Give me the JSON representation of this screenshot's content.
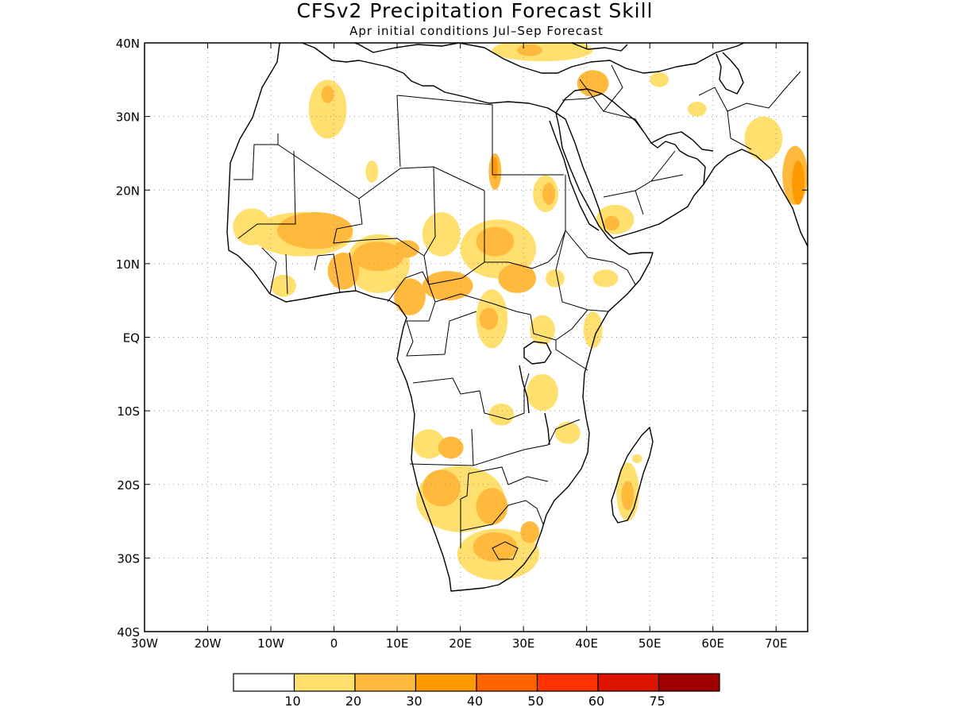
{
  "title": "CFSv2 Precipitation Forecast Skill",
  "subtitle": "Apr initial conditions  Jul–Sep Forecast",
  "map": {
    "lon_range": [
      -30,
      75
    ],
    "lat_range": [
      -40,
      40
    ],
    "grid": true,
    "lon_ticks": [
      {
        "value": -30,
        "label": "30W"
      },
      {
        "value": -20,
        "label": "20W"
      },
      {
        "value": -10,
        "label": "10W"
      },
      {
        "value": 0,
        "label": "0"
      },
      {
        "value": 10,
        "label": "10E"
      },
      {
        "value": 20,
        "label": "20E"
      },
      {
        "value": 30,
        "label": "30E"
      },
      {
        "value": 40,
        "label": "40E"
      },
      {
        "value": 50,
        "label": "50E"
      },
      {
        "value": 60,
        "label": "60E"
      },
      {
        "value": 70,
        "label": "70E"
      }
    ],
    "lat_ticks": [
      {
        "value": 40,
        "label": "40N"
      },
      {
        "value": 30,
        "label": "30N"
      },
      {
        "value": 20,
        "label": "20N"
      },
      {
        "value": 10,
        "label": "10N"
      },
      {
        "value": 0,
        "label": "EQ"
      },
      {
        "value": -10,
        "label": "10S"
      },
      {
        "value": -20,
        "label": "20S"
      },
      {
        "value": -30,
        "label": "30S"
      },
      {
        "value": -40,
        "label": "40S"
      }
    ]
  },
  "colorbar": {
    "colors": [
      "#ffffff",
      "#ffe06e",
      "#ffb93c",
      "#ff9a00",
      "#ff6400",
      "#ff3200",
      "#dc1400",
      "#a00000"
    ],
    "labels": [
      "10",
      "20",
      "30",
      "40",
      "50",
      "60",
      "75"
    ]
  },
  "chart_data": {
    "type": "heatmap",
    "variable": "precipitation forecast skill",
    "levels": [
      10,
      20,
      30,
      40,
      50,
      60,
      75
    ],
    "regions": [
      {
        "name": "morocco-algeria",
        "lon": -1,
        "lat": 31,
        "rlon": 3,
        "rlat": 4,
        "level": 10
      },
      {
        "name": "morocco-algeria-core",
        "lon": -1,
        "lat": 33,
        "rlon": 1,
        "rlat": 1.2,
        "level": 20
      },
      {
        "name": "algeria-south",
        "lon": 6,
        "lat": 22.5,
        "rlon": 1,
        "rlat": 1.5,
        "level": 10
      },
      {
        "name": "mediterranean-north",
        "lon": 33,
        "lat": 39,
        "rlon": 8,
        "rlat": 1.5,
        "level": 10
      },
      {
        "name": "mediterranean-core",
        "lon": 31,
        "lat": 39,
        "rlon": 2,
        "rlat": 0.8,
        "level": 20
      },
      {
        "name": "egypt-west",
        "lon": 25.5,
        "lat": 22.5,
        "rlon": 1,
        "rlat": 2.5,
        "level": 20
      },
      {
        "name": "egypt-west-core",
        "lon": 25.5,
        "lat": 23,
        "rlon": 0.4,
        "rlat": 1.5,
        "level": 30
      },
      {
        "name": "sudan-north",
        "lon": 33.5,
        "lat": 19.5,
        "rlon": 2,
        "rlat": 2.5,
        "level": 10
      },
      {
        "name": "sudan-north-core",
        "lon": 34,
        "lat": 19.5,
        "rlon": 1,
        "rlat": 1.5,
        "level": 20
      },
      {
        "name": "levant",
        "lon": 41,
        "lat": 34.5,
        "rlon": 2.5,
        "rlat": 1.8,
        "level": 20
      },
      {
        "name": "iran-west",
        "lon": 51.5,
        "lat": 35,
        "rlon": 1.5,
        "rlat": 1,
        "level": 10
      },
      {
        "name": "iran-south",
        "lon": 57.5,
        "lat": 31,
        "rlon": 1.5,
        "rlat": 1,
        "level": 10
      },
      {
        "name": "pakistan-india",
        "lon": 68,
        "lat": 27,
        "rlon": 3,
        "rlat": 3,
        "level": 10
      },
      {
        "name": "india-west-coast",
        "lon": 73,
        "lat": 22,
        "rlon": 2,
        "rlat": 4,
        "level": 20
      },
      {
        "name": "india-west-core",
        "lon": 73.5,
        "lat": 21,
        "rlon": 1,
        "rlat": 3,
        "level": 30
      },
      {
        "name": "yemen",
        "lon": 44.5,
        "lat": 16,
        "rlon": 3,
        "rlat": 2,
        "level": 10
      },
      {
        "name": "yemen-core",
        "lon": 44,
        "lat": 15.5,
        "rlon": 1.2,
        "rlat": 1,
        "level": 20
      },
      {
        "name": "west-sahel-senegal",
        "lon": -13,
        "lat": 15,
        "rlon": 3,
        "rlat": 2.5,
        "level": 10
      },
      {
        "name": "west-sahel-mali",
        "lon": -3,
        "lat": 14.5,
        "rlon": 6,
        "rlat": 2.5,
        "level": 20
      },
      {
        "name": "west-sahel-mali-band",
        "lon": -5,
        "lat": 14,
        "rlon": 8,
        "rlat": 3,
        "level": 10
      },
      {
        "name": "guinea-coast-west",
        "lon": -8,
        "lat": 7,
        "rlon": 2,
        "rlat": 1.5,
        "level": 10
      },
      {
        "name": "ghana-togo",
        "lon": 1.5,
        "lat": 9,
        "rlon": 2.5,
        "rlat": 2.5,
        "level": 20
      },
      {
        "name": "nigeria",
        "lon": 7,
        "lat": 10,
        "rlon": 5,
        "rlat": 4,
        "level": 10
      },
      {
        "name": "nigeria-core",
        "lon": 7,
        "lat": 11,
        "rlon": 4,
        "rlat": 2,
        "level": 20
      },
      {
        "name": "nigeria-east",
        "lon": 11.5,
        "lat": 12,
        "rlon": 2,
        "rlat": 1.2,
        "level": 20
      },
      {
        "name": "cameroon",
        "lon": 12,
        "lat": 5.5,
        "rlon": 2.5,
        "rlat": 2.5,
        "level": 20
      },
      {
        "name": "chad",
        "lon": 17,
        "lat": 14,
        "rlon": 3,
        "rlat": 3,
        "level": 10
      },
      {
        "name": "car",
        "lon": 18,
        "lat": 7,
        "rlon": 4,
        "rlat": 2,
        "level": 20
      },
      {
        "name": "sudan-central",
        "lon": 26,
        "lat": 12,
        "rlon": 6,
        "rlat": 4,
        "level": 10
      },
      {
        "name": "sudan-core",
        "lon": 25.5,
        "lat": 13,
        "rlon": 3,
        "rlat": 2,
        "level": 20
      },
      {
        "name": "south-sudan",
        "lon": 29,
        "lat": 8,
        "rlon": 3,
        "rlat": 2,
        "level": 20
      },
      {
        "name": "ethiopia-west",
        "lon": 35,
        "lat": 8,
        "rlon": 1.5,
        "rlat": 1.2,
        "level": 10
      },
      {
        "name": "ethiopia-east",
        "lon": 43,
        "lat": 8,
        "rlon": 2,
        "rlat": 1.2,
        "level": 10
      },
      {
        "name": "drc-north",
        "lon": 25,
        "lat": 2.5,
        "rlon": 2.5,
        "rlat": 4,
        "level": 10
      },
      {
        "name": "drc-north-core",
        "lon": 24.5,
        "lat": 2.5,
        "rlon": 1.5,
        "rlat": 1.5,
        "level": 20
      },
      {
        "name": "kenya-coast",
        "lon": 41,
        "lat": 1,
        "rlon": 1.5,
        "rlat": 2.5,
        "level": 10
      },
      {
        "name": "uganda",
        "lon": 33,
        "lat": 1,
        "rlon": 2,
        "rlat": 2,
        "level": 10
      },
      {
        "name": "tanzania",
        "lon": 33,
        "lat": -7.5,
        "rlon": 2.5,
        "rlat": 2.5,
        "level": 10
      },
      {
        "name": "zambia-north",
        "lon": 26.5,
        "lat": -10.5,
        "rlon": 2,
        "rlat": 1.5,
        "level": 10
      },
      {
        "name": "mozambique-north",
        "lon": 37,
        "lat": -13,
        "rlon": 2,
        "rlat": 1.5,
        "level": 10
      },
      {
        "name": "angola-central",
        "lon": 15,
        "lat": -14.5,
        "rlon": 2.5,
        "rlat": 2,
        "level": 10
      },
      {
        "name": "angola-core",
        "lon": 18.5,
        "lat": -15,
        "rlon": 2,
        "rlat": 1.5,
        "level": 20
      },
      {
        "name": "namibia-botswana",
        "lon": 20,
        "lat": -22,
        "rlon": 7,
        "rlat": 4.5,
        "level": 10
      },
      {
        "name": "namibia-core",
        "lon": 17,
        "lat": -20.5,
        "rlon": 3,
        "rlat": 2.5,
        "level": 20
      },
      {
        "name": "botswana-core",
        "lon": 25,
        "lat": -23,
        "rlon": 2.5,
        "rlat": 2.5,
        "level": 20
      },
      {
        "name": "south-africa",
        "lon": 26,
        "lat": -29.5,
        "rlon": 6.5,
        "rlat": 3.5,
        "level": 10
      },
      {
        "name": "south-africa-core",
        "lon": 25.5,
        "lat": -28.5,
        "rlon": 3.5,
        "rlat": 2,
        "level": 20
      },
      {
        "name": "south-africa-east",
        "lon": 31,
        "lat": -26.5,
        "rlon": 1.5,
        "rlat": 1.5,
        "level": 20
      },
      {
        "name": "madagascar",
        "lon": 46.5,
        "lat": -21,
        "rlon": 1.8,
        "rlat": 4,
        "level": 10
      },
      {
        "name": "madagascar-core",
        "lon": 46.5,
        "lat": -21.5,
        "rlon": 1,
        "rlat": 2,
        "level": 20
      },
      {
        "name": "madagascar-north",
        "lon": 48,
        "lat": -16.5,
        "rlon": 0.8,
        "rlat": 0.6,
        "level": 10
      }
    ]
  }
}
